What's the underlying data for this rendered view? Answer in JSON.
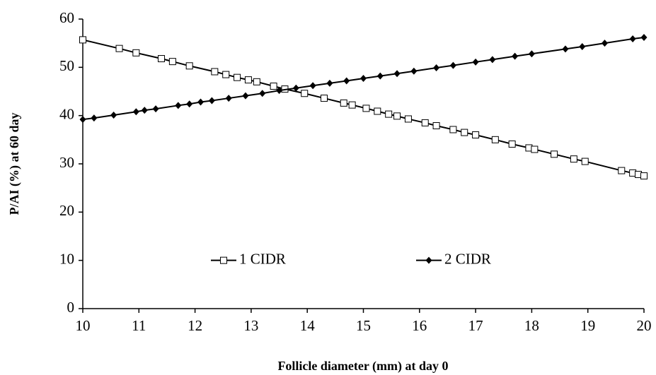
{
  "chart_data": {
    "type": "line",
    "xlabel": "Follicle diameter (mm) at day 0",
    "ylabel": "P/AI (%) at 60 day",
    "xlim": [
      10,
      20
    ],
    "xticks": [
      10,
      11,
      12,
      13,
      14,
      15,
      16,
      17,
      18,
      19,
      20
    ],
    "ylim": [
      0,
      60
    ],
    "yticks": [
      0,
      10,
      20,
      30,
      40,
      50,
      60
    ],
    "grid": false,
    "legend": "lower center",
    "series": [
      {
        "name": "1 CIDR",
        "color": "#000000",
        "marker": "square",
        "x": [
          10,
          10.65,
          10.95,
          11.4,
          11.6,
          11.9,
          12.35,
          12.55,
          12.75,
          12.95,
          13.1,
          13.4,
          13.6,
          13.95,
          14.3,
          14.65,
          14.8,
          15.05,
          15.25,
          15.45,
          15.6,
          15.8,
          16.1,
          16.3,
          16.6,
          16.8,
          17.0,
          17.35,
          17.65,
          17.95,
          18.05,
          18.4,
          18.75,
          18.95,
          19.6,
          19.8,
          19.9,
          20.0
        ],
        "values": [
          55.7,
          53.9,
          53.0,
          51.8,
          51.2,
          50.3,
          49.1,
          48.5,
          47.9,
          47.4,
          47.0,
          46.1,
          45.5,
          44.6,
          43.6,
          42.6,
          42.2,
          41.5,
          40.9,
          40.3,
          39.9,
          39.3,
          38.5,
          37.9,
          37.1,
          36.5,
          36.0,
          35.0,
          34.1,
          33.3,
          33.0,
          32.0,
          31.0,
          30.5,
          28.6,
          28.1,
          27.8,
          27.5
        ]
      },
      {
        "name": "2 CIDR",
        "color": "#000000",
        "marker": "diamond",
        "x": [
          10,
          10.2,
          10.55,
          10.95,
          11.1,
          11.3,
          11.7,
          11.9,
          12.1,
          12.3,
          12.6,
          12.9,
          13.2,
          13.5,
          13.8,
          14.1,
          14.4,
          14.7,
          15.0,
          15.3,
          15.6,
          15.9,
          16.3,
          16.6,
          17.0,
          17.3,
          17.7,
          18.0,
          18.6,
          18.9,
          19.3,
          19.8,
          20.0
        ],
        "values": [
          39.2,
          39.5,
          40.1,
          40.8,
          41.1,
          41.4,
          42.1,
          42.4,
          42.8,
          43.1,
          43.6,
          44.1,
          44.6,
          45.2,
          45.7,
          46.2,
          46.7,
          47.2,
          47.7,
          48.2,
          48.7,
          49.2,
          49.9,
          50.4,
          51.1,
          51.6,
          52.3,
          52.8,
          53.8,
          54.3,
          55.0,
          55.9,
          56.2
        ]
      }
    ]
  }
}
